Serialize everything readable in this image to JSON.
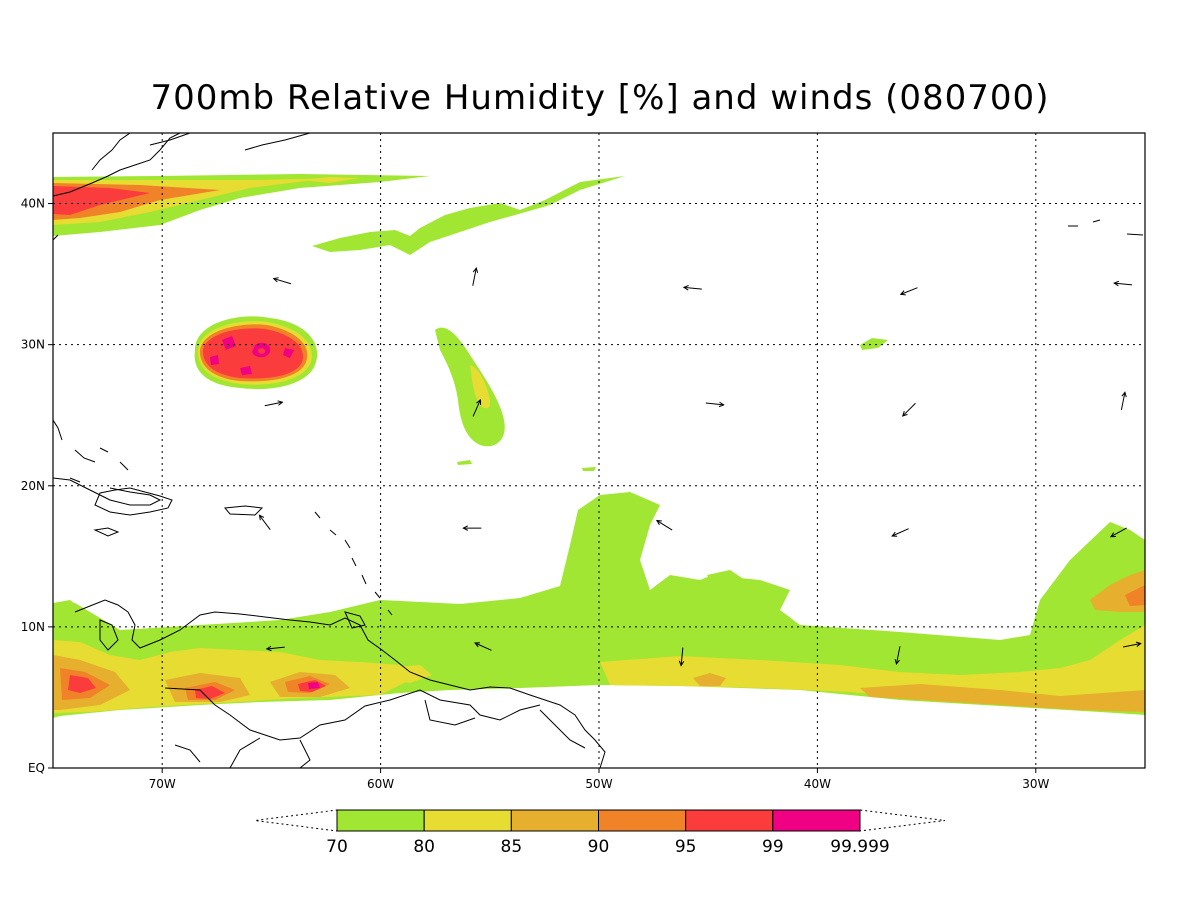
{
  "title": "700mb Relative Humidity [%] and winds (080700)",
  "colors": {
    "c70": "#a0e632",
    "c80": "#e6dc32",
    "c85": "#e6af2d",
    "c90": "#f08228",
    "c95": "#fa3c3c",
    "c99": "#f00082",
    "coast": "#000000",
    "grid": "#000000"
  },
  "map": {
    "lon_range": [
      -75,
      -25
    ],
    "lat_range": [
      0,
      45
    ],
    "lon_ticks": [
      {
        "value": -70,
        "label": "70W"
      },
      {
        "value": -60,
        "label": "60W"
      },
      {
        "value": -50,
        "label": "50W"
      },
      {
        "value": -40,
        "label": "40W"
      },
      {
        "value": -30,
        "label": "30W"
      }
    ],
    "lat_ticks": [
      {
        "value": 0,
        "label": "EQ"
      },
      {
        "value": 10,
        "label": "10N"
      },
      {
        "value": 20,
        "label": "20N"
      },
      {
        "value": 30,
        "label": "30N"
      },
      {
        "value": 40,
        "label": "40N"
      }
    ]
  },
  "colorbar": {
    "labels": [
      "70",
      "80",
      "85",
      "90",
      "95",
      "99",
      "99.999"
    ]
  },
  "winds": [
    {
      "lon": -64.5,
      "lat": 34.5,
      "u": -1.0,
      "v": 0.3
    },
    {
      "lon": -55.7,
      "lat": 34.8,
      "u": 0.2,
      "v": 1.0
    },
    {
      "lon": -45.7,
      "lat": 34.0,
      "u": -1.0,
      "v": 0.1
    },
    {
      "lon": -35.8,
      "lat": 33.8,
      "u": -1.0,
      "v": -0.4
    },
    {
      "lon": -26.0,
      "lat": 34.3,
      "u": -1.0,
      "v": 0.1
    },
    {
      "lon": -64.9,
      "lat": 25.8,
      "u": 1.0,
      "v": 0.2
    },
    {
      "lon": -55.6,
      "lat": 25.5,
      "u": 0.4,
      "v": 0.9
    },
    {
      "lon": -44.7,
      "lat": 25.8,
      "u": 1.0,
      "v": -0.1
    },
    {
      "lon": -35.8,
      "lat": 25.4,
      "u": -0.7,
      "v": -0.7
    },
    {
      "lon": -26.0,
      "lat": 26.0,
      "u": 0.2,
      "v": 1.0
    },
    {
      "lon": -65.3,
      "lat": 17.4,
      "u": -0.6,
      "v": 0.8
    },
    {
      "lon": -55.8,
      "lat": 17.0,
      "u": -1.0,
      "v": 0.0
    },
    {
      "lon": -47.0,
      "lat": 17.2,
      "u": -0.8,
      "v": 0.5
    },
    {
      "lon": -36.2,
      "lat": 16.7,
      "u": -0.9,
      "v": -0.4
    },
    {
      "lon": -26.2,
      "lat": 16.7,
      "u": -0.9,
      "v": -0.5
    },
    {
      "lon": -64.8,
      "lat": 8.5,
      "u": -1.0,
      "v": -0.1
    },
    {
      "lon": -55.3,
      "lat": 8.6,
      "u": -0.9,
      "v": 0.4
    },
    {
      "lon": -46.2,
      "lat": 7.9,
      "u": -0.1,
      "v": -1.0
    },
    {
      "lon": -36.3,
      "lat": 8.0,
      "u": -0.2,
      "v": -1.0
    },
    {
      "lon": -25.6,
      "lat": 8.7,
      "u": 1.0,
      "v": 0.2
    }
  ]
}
